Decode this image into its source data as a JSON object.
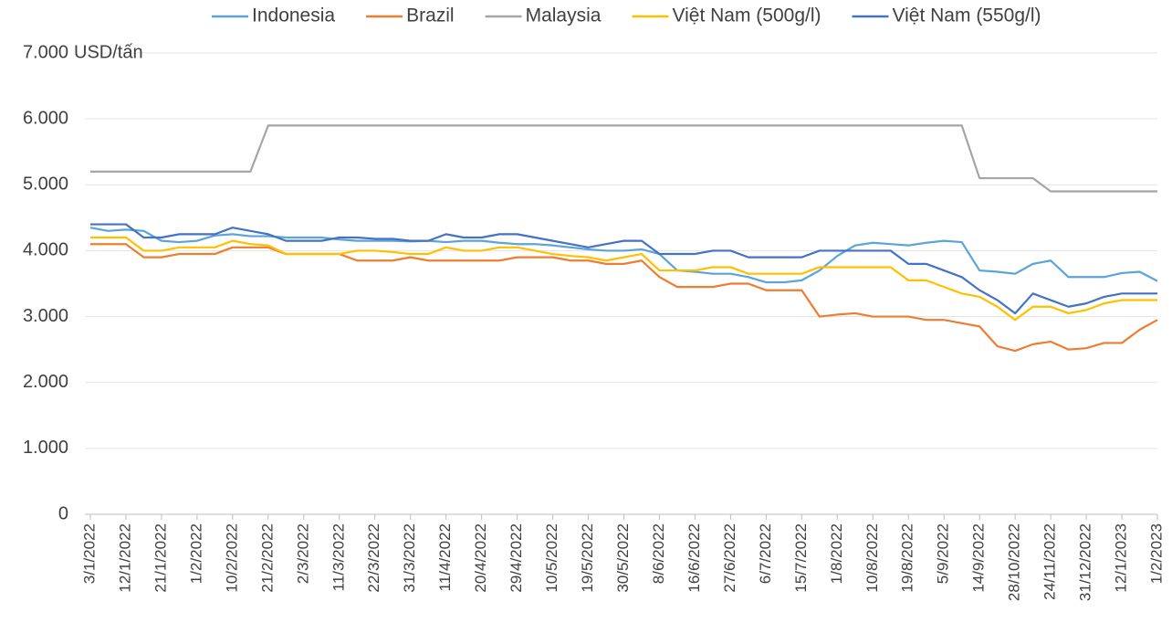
{
  "chart_data": {
    "type": "line",
    "y_label": "USD/tấn",
    "categories": [
      "3/1/2022",
      null,
      "12/1/2022",
      null,
      "21/1/2022",
      null,
      "1/2/2022",
      null,
      "10/2/2022",
      null,
      "21/2/2022",
      null,
      "2/3/2022",
      null,
      "11/3/2022",
      null,
      "22/3/2022",
      null,
      "31/3/2022",
      null,
      "11/4/2022",
      null,
      "20/4/2022",
      null,
      "29/4/2022",
      null,
      "10/5/2022",
      null,
      "19/5/2022",
      null,
      "30/5/2022",
      null,
      "8/6/2022",
      null,
      "16/6/2022",
      null,
      "27/6/2022",
      null,
      "6/7/2022",
      null,
      "15/7/2022",
      null,
      "1/8/2022",
      null,
      "10/8/2022",
      null,
      "19/8/2022",
      null,
      "5/9/2022",
      null,
      "14/9/2022",
      null,
      "28/10/2022",
      null,
      "24/11/2022",
      null,
      "31/12/2022",
      null,
      "12/1/2023",
      null,
      "1/2/2023"
    ],
    "series": [
      {
        "name": "Indonesia",
        "color": "#5ba3d9",
        "values": [
          4350,
          4300,
          4320,
          4300,
          4150,
          4130,
          4150,
          4230,
          4250,
          4220,
          4220,
          4200,
          4200,
          4200,
          4170,
          4150,
          4150,
          4150,
          4140,
          4150,
          4130,
          4150,
          4150,
          4120,
          4100,
          4100,
          4080,
          4050,
          4020,
          4000,
          4000,
          4020,
          3950,
          3700,
          3680,
          3650,
          3650,
          3600,
          3520,
          3520,
          3550,
          3700,
          3920,
          4080,
          4120,
          4100,
          4080,
          4120,
          4150,
          4130,
          3700,
          3680,
          3650,
          3800,
          3850,
          3600,
          3600,
          3600,
          3660,
          3680,
          3540
        ]
      },
      {
        "name": "Brazil",
        "color": "#ed7d31",
        "values": [
          4100,
          4100,
          4100,
          3900,
          3900,
          3950,
          3950,
          3950,
          4050,
          4050,
          4050,
          3950,
          3950,
          3950,
          3950,
          3850,
          3850,
          3850,
          3900,
          3850,
          3850,
          3850,
          3850,
          3850,
          3900,
          3900,
          3900,
          3850,
          3850,
          3800,
          3800,
          3850,
          3600,
          3450,
          3450,
          3450,
          3500,
          3500,
          3400,
          3400,
          3400,
          3000,
          3030,
          3050,
          3000,
          3000,
          3000,
          2950,
          2950,
          2900,
          2850,
          2550,
          2480,
          2580,
          2620,
          2500,
          2520,
          2600,
          2600,
          2800,
          2950
        ]
      },
      {
        "name": "Malaysia",
        "color": "#a5a5a5",
        "values": [
          5200,
          5200,
          5200,
          5200,
          5200,
          5200,
          5200,
          5200,
          5200,
          5200,
          5900,
          5900,
          5900,
          5900,
          5900,
          5900,
          5900,
          5900,
          5900,
          5900,
          5900,
          5900,
          5900,
          5900,
          5900,
          5900,
          5900,
          5900,
          5900,
          5900,
          5900,
          5900,
          5900,
          5900,
          5900,
          5900,
          5900,
          5900,
          5900,
          5900,
          5900,
          5900,
          5900,
          5900,
          5900,
          5900,
          5900,
          5900,
          5900,
          5900,
          5100,
          5100,
          5100,
          5100,
          4900,
          4900,
          4900,
          4900,
          4900,
          4900,
          4900
        ]
      },
      {
        "name": "Việt Nam (500g/l)",
        "color": "#ffc000",
        "values": [
          4200,
          4200,
          4200,
          4000,
          4000,
          4050,
          4050,
          4050,
          4150,
          4100,
          4080,
          3950,
          3950,
          3950,
          3950,
          4000,
          4000,
          3980,
          3950,
          3950,
          4050,
          4000,
          4000,
          4050,
          4050,
          4000,
          3950,
          3920,
          3900,
          3850,
          3900,
          3950,
          3700,
          3700,
          3700,
          3750,
          3750,
          3650,
          3650,
          3650,
          3650,
          3750,
          3750,
          3750,
          3750,
          3750,
          3550,
          3550,
          3450,
          3350,
          3300,
          3150,
          2950,
          3150,
          3150,
          3050,
          3100,
          3200,
          3250,
          3250,
          3250
        ]
      },
      {
        "name": "Việt Nam (550g/l)",
        "color": "#4472c4",
        "values": [
          4400,
          4400,
          4400,
          4200,
          4200,
          4250,
          4250,
          4250,
          4350,
          4300,
          4250,
          4150,
          4150,
          4150,
          4200,
          4200,
          4180,
          4180,
          4150,
          4150,
          4250,
          4200,
          4200,
          4250,
          4250,
          4200,
          4150,
          4100,
          4050,
          4100,
          4150,
          4150,
          3950,
          3950,
          3950,
          4000,
          4000,
          3900,
          3900,
          3900,
          3900,
          4000,
          4000,
          4000,
          4000,
          4000,
          3800,
          3800,
          3700,
          3600,
          3400,
          3250,
          3050,
          3350,
          3250,
          3150,
          3200,
          3300,
          3350,
          3350,
          3350
        ]
      }
    ],
    "ylim": [
      0,
      7000
    ],
    "yticks": [
      0,
      {
        "value": 1000,
        "label": "1.000"
      },
      {
        "value": 2000,
        "label": "2.000"
      },
      {
        "value": 3000,
        "label": "3.000"
      },
      {
        "value": 4000,
        "label": "4.000"
      },
      {
        "value": 5000,
        "label": "5.000"
      },
      {
        "value": 6000,
        "label": "6.000"
      },
      {
        "value": 7000,
        "label": "7.000"
      }
    ],
    "grid": true,
    "legend": "top"
  }
}
